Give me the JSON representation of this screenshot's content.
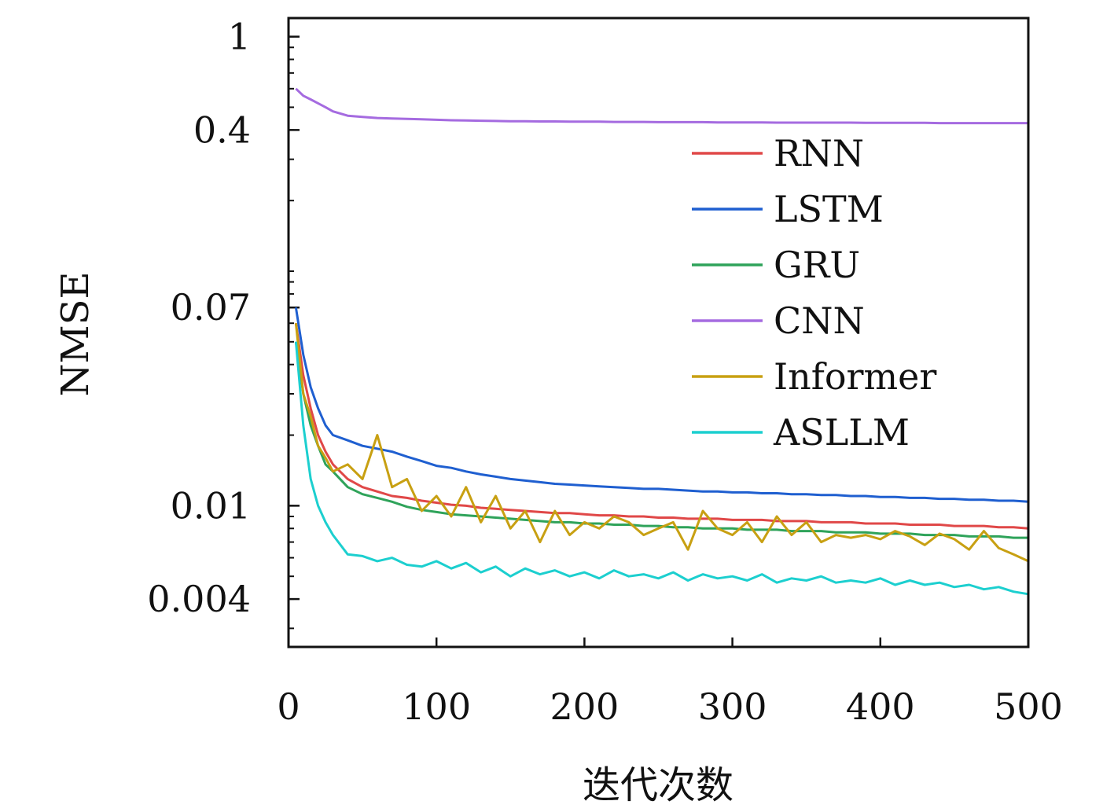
{
  "chart_data": {
    "type": "line",
    "xlabel": "迭代次数",
    "ylabel": "NMSE",
    "xlim": [
      0,
      500
    ],
    "ylim": [
      0.0025,
      1.2
    ],
    "yscale": "log",
    "x_ticks": [
      0,
      100,
      200,
      300,
      400,
      500
    ],
    "x_tick_labels": [
      "0",
      "100",
      "200",
      "300",
      "400",
      "500"
    ],
    "y_ticks": [
      1,
      0.4,
      0.07,
      0.01,
      0.004
    ],
    "y_tick_labels": [
      "1",
      "0.4",
      "0.07",
      "0.01",
      "0.004"
    ],
    "grid": false,
    "legend_position": "right",
    "x": [
      5,
      10,
      15,
      20,
      25,
      30,
      40,
      50,
      60,
      70,
      80,
      90,
      100,
      110,
      120,
      130,
      140,
      150,
      160,
      170,
      180,
      190,
      200,
      210,
      220,
      230,
      240,
      250,
      260,
      270,
      280,
      290,
      300,
      310,
      320,
      330,
      340,
      350,
      360,
      370,
      380,
      390,
      400,
      410,
      420,
      430,
      440,
      450,
      460,
      470,
      480,
      490,
      500
    ],
    "series": [
      {
        "name": "RNN",
        "color": "#e04848",
        "values": [
          0.06,
          0.036,
          0.026,
          0.02,
          0.017,
          0.015,
          0.013,
          0.012,
          0.0115,
          0.011,
          0.0108,
          0.0105,
          0.0103,
          0.0101,
          0.01,
          0.0098,
          0.0097,
          0.0096,
          0.0095,
          0.0094,
          0.0093,
          0.0093,
          0.0092,
          0.0091,
          0.0091,
          0.009,
          0.009,
          0.0089,
          0.0089,
          0.0088,
          0.0088,
          0.0088,
          0.0087,
          0.0087,
          0.0087,
          0.0086,
          0.0086,
          0.0086,
          0.0085,
          0.0085,
          0.0085,
          0.0084,
          0.0084,
          0.0084,
          0.0083,
          0.0083,
          0.0083,
          0.0082,
          0.0082,
          0.0082,
          0.0081,
          0.0081,
          0.008
        ]
      },
      {
        "name": "LSTM",
        "color": "#1f5fd0",
        "values": [
          0.07,
          0.044,
          0.032,
          0.026,
          0.022,
          0.02,
          0.019,
          0.018,
          0.0175,
          0.017,
          0.0162,
          0.0155,
          0.0148,
          0.0145,
          0.014,
          0.0136,
          0.0133,
          0.013,
          0.0128,
          0.0126,
          0.0124,
          0.0123,
          0.0122,
          0.0121,
          0.012,
          0.0119,
          0.0118,
          0.0118,
          0.0117,
          0.0116,
          0.0115,
          0.0115,
          0.0114,
          0.0114,
          0.0113,
          0.0113,
          0.0112,
          0.0112,
          0.0111,
          0.0111,
          0.011,
          0.011,
          0.0109,
          0.0109,
          0.0108,
          0.0108,
          0.0107,
          0.0107,
          0.0106,
          0.0106,
          0.0105,
          0.0105,
          0.0104
        ]
      },
      {
        "name": "GRU",
        "color": "#2fa35a",
        "values": [
          0.05,
          0.03,
          0.022,
          0.018,
          0.015,
          0.014,
          0.012,
          0.0112,
          0.0108,
          0.0104,
          0.0099,
          0.0096,
          0.0094,
          0.0092,
          0.0091,
          0.009,
          0.0089,
          0.0088,
          0.0087,
          0.0086,
          0.0085,
          0.0085,
          0.0084,
          0.0084,
          0.0083,
          0.0083,
          0.0082,
          0.0082,
          0.0081,
          0.0081,
          0.008,
          0.008,
          0.008,
          0.0079,
          0.0079,
          0.0079,
          0.0078,
          0.0078,
          0.0078,
          0.0077,
          0.0077,
          0.0077,
          0.0076,
          0.0076,
          0.0076,
          0.0075,
          0.0075,
          0.0075,
          0.0074,
          0.0074,
          0.0074,
          0.0073,
          0.0073
        ]
      },
      {
        "name": "CNN",
        "color": "#a56be0",
        "values": [
          0.6,
          0.56,
          0.54,
          0.52,
          0.5,
          0.48,
          0.46,
          0.455,
          0.45,
          0.448,
          0.446,
          0.444,
          0.442,
          0.44,
          0.439,
          0.438,
          0.437,
          0.436,
          0.436,
          0.435,
          0.435,
          0.434,
          0.434,
          0.434,
          0.433,
          0.433,
          0.433,
          0.432,
          0.432,
          0.432,
          0.432,
          0.431,
          0.431,
          0.431,
          0.431,
          0.43,
          0.43,
          0.43,
          0.43,
          0.43,
          0.43,
          0.429,
          0.429,
          0.429,
          0.429,
          0.429,
          0.428,
          0.428,
          0.428,
          0.428,
          0.428,
          0.428,
          0.428
        ]
      },
      {
        "name": "Informer",
        "color": "#c8a012",
        "values": [
          0.06,
          0.03,
          0.024,
          0.018,
          0.016,
          0.014,
          0.015,
          0.013,
          0.02,
          0.012,
          0.013,
          0.0095,
          0.011,
          0.009,
          0.012,
          0.0085,
          0.011,
          0.008,
          0.0095,
          0.007,
          0.0095,
          0.0075,
          0.0085,
          0.008,
          0.009,
          0.0085,
          0.0075,
          0.008,
          0.0085,
          0.0065,
          0.0095,
          0.008,
          0.0075,
          0.0085,
          0.007,
          0.009,
          0.0075,
          0.0085,
          0.007,
          0.0075,
          0.0073,
          0.0075,
          0.0072,
          0.0078,
          0.0074,
          0.0068,
          0.0076,
          0.0072,
          0.0065,
          0.0078,
          0.0066,
          0.0062,
          0.0058
        ]
      },
      {
        "name": "ASLLM",
        "color": "#1ccfcf",
        "values": [
          0.05,
          0.022,
          0.013,
          0.01,
          0.0085,
          0.0075,
          0.0062,
          0.0061,
          0.0058,
          0.006,
          0.0056,
          0.0055,
          0.0058,
          0.0054,
          0.0057,
          0.0052,
          0.0055,
          0.005,
          0.0054,
          0.0051,
          0.0053,
          0.005,
          0.0052,
          0.0049,
          0.0053,
          0.005,
          0.0051,
          0.0049,
          0.0052,
          0.0048,
          0.0051,
          0.0049,
          0.005,
          0.0048,
          0.0051,
          0.0047,
          0.0049,
          0.0048,
          0.005,
          0.0047,
          0.0048,
          0.0047,
          0.0049,
          0.0046,
          0.0048,
          0.0046,
          0.0047,
          0.0045,
          0.0046,
          0.0044,
          0.0045,
          0.0043,
          0.0042
        ]
      }
    ]
  }
}
